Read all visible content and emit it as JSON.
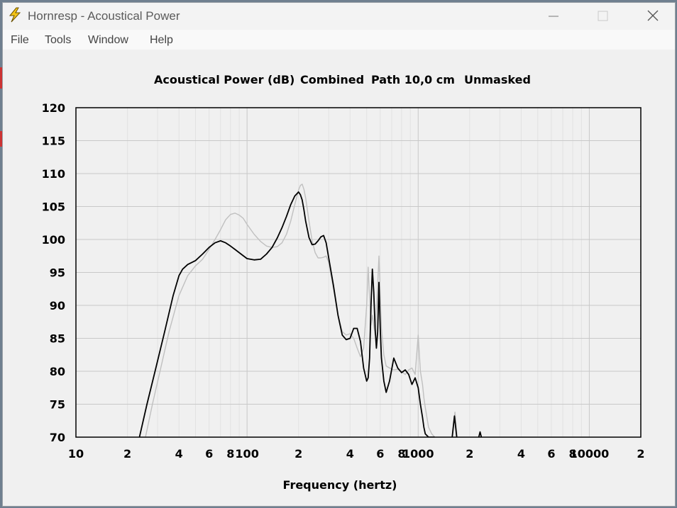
{
  "window": {
    "title": "Hornresp - Acoustical Power",
    "icon": "lightning-bolt-icon",
    "controls": [
      "minimize-icon",
      "maximize-icon",
      "close-icon"
    ]
  },
  "menu": {
    "items": [
      "File",
      "Tools",
      "Window",
      "Help"
    ]
  },
  "chart_data": {
    "type": "line",
    "title": "Acoustical Power (dB)",
    "header_fields": [
      "Combined",
      "Path 10,0 cm",
      "Unmasked"
    ],
    "xlabel": "Frequency (hertz)",
    "ylabel": "",
    "x_scale": "log",
    "xlim": [
      10,
      20000
    ],
    "ylim": [
      70,
      120
    ],
    "y_ticks": [
      70,
      75,
      80,
      85,
      90,
      95,
      100,
      105,
      110,
      115,
      120
    ],
    "y_tick_labels": [
      "70",
      "75",
      "80",
      "85",
      "90",
      "95",
      "100",
      "105",
      "110",
      "115",
      "120"
    ],
    "x_ticks": [
      10,
      20,
      40,
      60,
      80,
      100,
      200,
      400,
      600,
      800,
      1000,
      2000,
      4000,
      6000,
      8000,
      10000,
      20000
    ],
    "x_tick_labels": [
      "10",
      "2",
      "4",
      "6",
      "8",
      "100",
      "2",
      "4",
      "6",
      "8",
      "1000",
      "2",
      "4",
      "6",
      "8",
      "10000",
      "2"
    ],
    "grid": true,
    "colors": {
      "primary": "#000000",
      "secondary": "#c0c0c0",
      "grid": "#c8c8c8",
      "grid_minor": "#e2e2e2"
    },
    "series": [
      {
        "color": "#c0c0c0",
        "x": [
          25.5,
          28,
          31,
          35,
          40,
          45,
          50,
          55,
          60,
          65,
          70,
          75,
          80,
          85,
          90,
          95,
          100,
          110,
          120,
          130,
          140,
          150,
          160,
          170,
          180,
          190,
          200,
          205,
          210,
          215,
          220,
          230,
          240,
          250,
          260,
          270,
          280,
          290,
          300,
          320,
          340,
          360,
          380,
          400,
          420,
          440,
          460,
          480,
          500,
          510,
          520,
          530,
          540,
          560,
          580,
          590,
          600,
          610,
          630,
          650,
          680,
          720,
          760,
          800,
          840,
          880,
          920,
          960,
          1000,
          1030,
          1060,
          1080,
          1100,
          1150,
          1200,
          1250
        ],
        "y": [
          70,
          75,
          80,
          86,
          91.5,
          94.5,
          96,
          97,
          98.5,
          100,
          101.5,
          103,
          103.8,
          104,
          103.7,
          103.2,
          102.3,
          100.8,
          99.7,
          99,
          98.8,
          98.9,
          99.5,
          100.8,
          102.8,
          105.3,
          107.5,
          108.2,
          108.4,
          107.6,
          106.3,
          102.8,
          99.8,
          98,
          97.2,
          97.2,
          97.3,
          97.5,
          96.5,
          92.5,
          88.5,
          86,
          85.5,
          85.7,
          85,
          83.5,
          82.2,
          83.5,
          90,
          95.8,
          91,
          87,
          88.5,
          85.5,
          93,
          97.5,
          92,
          86.5,
          82.5,
          80.8,
          80.5,
          80.2,
          80.3,
          80,
          79.5,
          80.2,
          80.5,
          79.5,
          85.5,
          80,
          78,
          76,
          74.5,
          71.5,
          70.5,
          70
        ]
      },
      {
        "color": "#000000",
        "x": [
          23.5,
          26,
          29,
          33,
          37,
          40,
          42,
          45,
          50,
          55,
          60,
          65,
          70,
          75,
          80,
          85,
          90,
          100,
          110,
          120,
          130,
          140,
          150,
          160,
          170,
          180,
          190,
          200,
          205,
          210,
          215,
          220,
          230,
          240,
          250,
          260,
          270,
          280,
          290,
          300,
          320,
          340,
          360,
          380,
          400,
          420,
          440,
          460,
          480,
          500,
          510,
          520,
          530,
          540,
          550,
          560,
          570,
          580,
          590,
          600,
          610,
          630,
          650,
          680,
          720,
          760,
          800,
          840,
          880,
          920,
          960,
          1000,
          1030,
          1060,
          1080,
          1100,
          1150,
          1200,
          1250
        ],
        "y": [
          70,
          75,
          80,
          86,
          91.5,
          94.5,
          95.5,
          96.2,
          96.8,
          97.8,
          98.8,
          99.5,
          99.8,
          99.5,
          99,
          98.5,
          98,
          97.1,
          96.9,
          97,
          97.8,
          98.8,
          100.2,
          101.8,
          103.5,
          105.3,
          106.6,
          107.2,
          106.8,
          106,
          104.5,
          102.8,
          100.3,
          99.2,
          99.3,
          99.8,
          100.4,
          100.6,
          99.5,
          97.2,
          93,
          88.5,
          85.5,
          84.8,
          85,
          86.5,
          86.5,
          84.5,
          80.5,
          78.5,
          79,
          82,
          90,
          95.5,
          92,
          86.5,
          83.5,
          86,
          93.5,
          86.5,
          82,
          78.5,
          76.8,
          78.5,
          82,
          80.5,
          79.8,
          80.2,
          79.5,
          78,
          79,
          77.5,
          75,
          73,
          71.5,
          70.5,
          70,
          70,
          70
        ]
      },
      {
        "color": "#000000",
        "x": [
          1580,
          1630,
          1680
        ],
        "y": [
          70,
          73.2,
          70
        ]
      },
      {
        "color": "#000000",
        "x": [
          2260,
          2300,
          2340
        ],
        "y": [
          70,
          70.8,
          70
        ]
      },
      {
        "color": "#c0c0c0",
        "x": [
          1590,
          1640,
          1690
        ],
        "y": [
          70,
          73.8,
          70
        ]
      }
    ]
  }
}
